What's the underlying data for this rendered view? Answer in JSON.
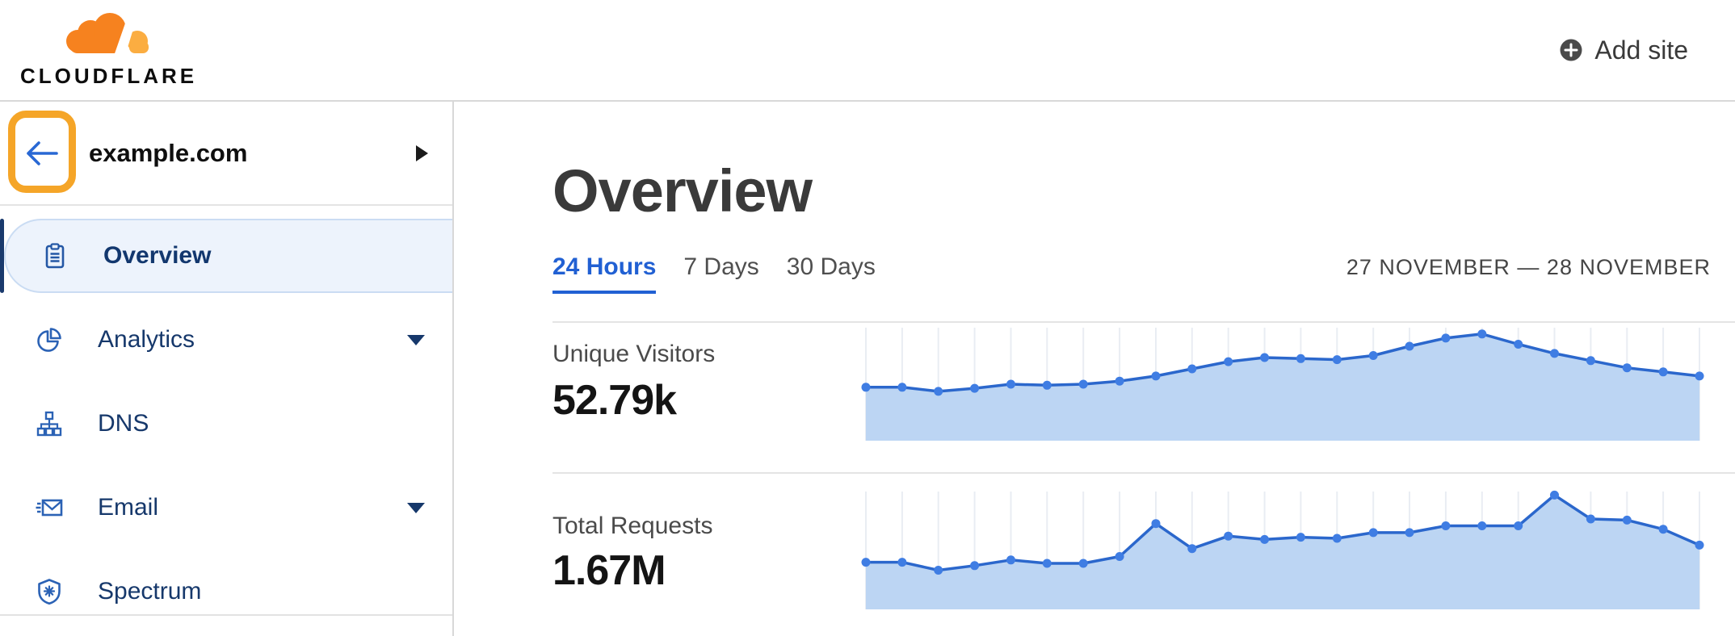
{
  "topbar": {
    "logo_text": "CLOUDFLARE",
    "add_site_label": "Add site"
  },
  "sidebar": {
    "site_name": "example.com",
    "items": [
      {
        "label": "Overview",
        "icon": "clipboard-icon",
        "selected": true,
        "expandable": false
      },
      {
        "label": "Analytics",
        "icon": "pie-chart-icon",
        "selected": false,
        "expandable": true
      },
      {
        "label": "DNS",
        "icon": "sitemap-icon",
        "selected": false,
        "expandable": false
      },
      {
        "label": "Email",
        "icon": "envelope-icon",
        "selected": false,
        "expandable": true
      },
      {
        "label": "Spectrum",
        "icon": "shield-icon",
        "selected": false,
        "expandable": false
      }
    ]
  },
  "main": {
    "title": "Overview",
    "tabs": [
      {
        "label": "24 Hours",
        "active": true
      },
      {
        "label": "7 Days",
        "active": false
      },
      {
        "label": "30 Days",
        "active": false
      }
    ],
    "date_range": "27 NOVEMBER — 28 NOVEMBER",
    "stats": [
      {
        "label": "Unique Visitors",
        "value": "52.79k"
      },
      {
        "label": "Total Requests",
        "value": "1.67M"
      }
    ]
  },
  "chart_data": [
    {
      "type": "area",
      "title": "Unique Visitors",
      "total": "52.79k",
      "period": "24 Hours",
      "num_points": 24,
      "values_relative": [
        0.45,
        0.45,
        0.41,
        0.44,
        0.48,
        0.47,
        0.48,
        0.51,
        0.56,
        0.63,
        0.7,
        0.74,
        0.73,
        0.72,
        0.76,
        0.85,
        0.93,
        0.97,
        0.87,
        0.78,
        0.71,
        0.64,
        0.6,
        0.56
      ],
      "ylim": [
        0,
        1
      ],
      "grid": "vertical-only",
      "legend": "none",
      "line_color": "#2B67CC",
      "fill_color": "#BCD5F3",
      "point_color": "#3F7DE3"
    },
    {
      "type": "area",
      "title": "Total Requests",
      "total": "1.67M",
      "period": "24 Hours",
      "num_points": 24,
      "values_relative": [
        0.4,
        0.4,
        0.33,
        0.37,
        0.42,
        0.39,
        0.39,
        0.45,
        0.74,
        0.52,
        0.63,
        0.6,
        0.62,
        0.61,
        0.66,
        0.66,
        0.72,
        0.72,
        0.72,
        0.99,
        0.78,
        0.77,
        0.69,
        0.55
      ],
      "ylim": [
        0,
        1
      ],
      "grid": "vertical-only",
      "legend": "none",
      "line_color": "#2B67CC",
      "fill_color": "#BCD5F3",
      "point_color": "#3F7DE3"
    }
  ],
  "colors": {
    "brand_orange": "#F6821F",
    "brand_orange_light": "#FBAD41",
    "annotation_orange": "#F5A528",
    "link_blue": "#2160D3",
    "nav_navy": "#16386B",
    "icon_blue": "#2B62B5",
    "selected_bg": "#EDF3FC",
    "selected_border": "#CADCF3",
    "accent_bar": "#1A3A6D",
    "divider": "#E4E4E4",
    "chart_grid": "#E9EDF3",
    "chart_fill": "#BCD5F3",
    "chart_line": "#2B67CC",
    "chart_dot": "#3F7DE3"
  },
  "annotation": {
    "shape": "rounded-rectangle",
    "color": "#F5A528",
    "highlights": "back-button"
  }
}
